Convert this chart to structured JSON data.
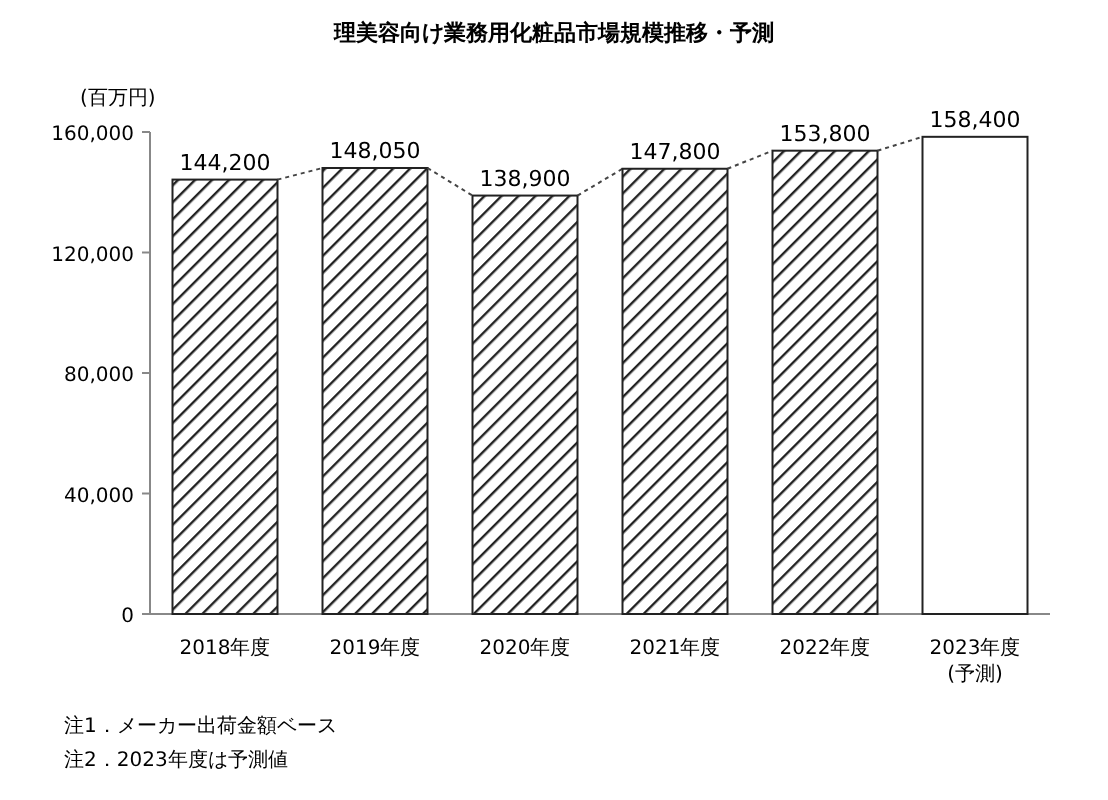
{
  "chart_data": {
    "type": "bar",
    "title": "理美容向け業務用化粧品市場規模推移・予測",
    "ylabel": "(百万円)",
    "categories": [
      "2018年度",
      "2019年度",
      "2020年度",
      "2021年度",
      "2022年度",
      "2023年度\n(予測)"
    ],
    "values": [
      144200,
      148050,
      138900,
      147800,
      153800,
      158400
    ],
    "value_labels": [
      "144,200",
      "148,050",
      "138,900",
      "147,800",
      "153,800",
      "158,400"
    ],
    "colors": [
      "#222222",
      "#222222",
      "#222222",
      "#222222",
      "#222222",
      "#ffffff"
    ],
    "ylim": [
      0,
      160000
    ],
    "yticks": [
      {
        "value": 0,
        "label": "0"
      },
      {
        "value": 40000,
        "label": "40,000"
      },
      {
        "value": 80000,
        "label": "80,000"
      },
      {
        "value": 120000,
        "label": "120,000"
      },
      {
        "value": 160000,
        "label": "160,000"
      }
    ],
    "grid": false,
    "line_style": "dotted",
    "annotations": [
      "注1．メーカー出荷金額ベース",
      "注2．2023年度は予測値"
    ]
  }
}
